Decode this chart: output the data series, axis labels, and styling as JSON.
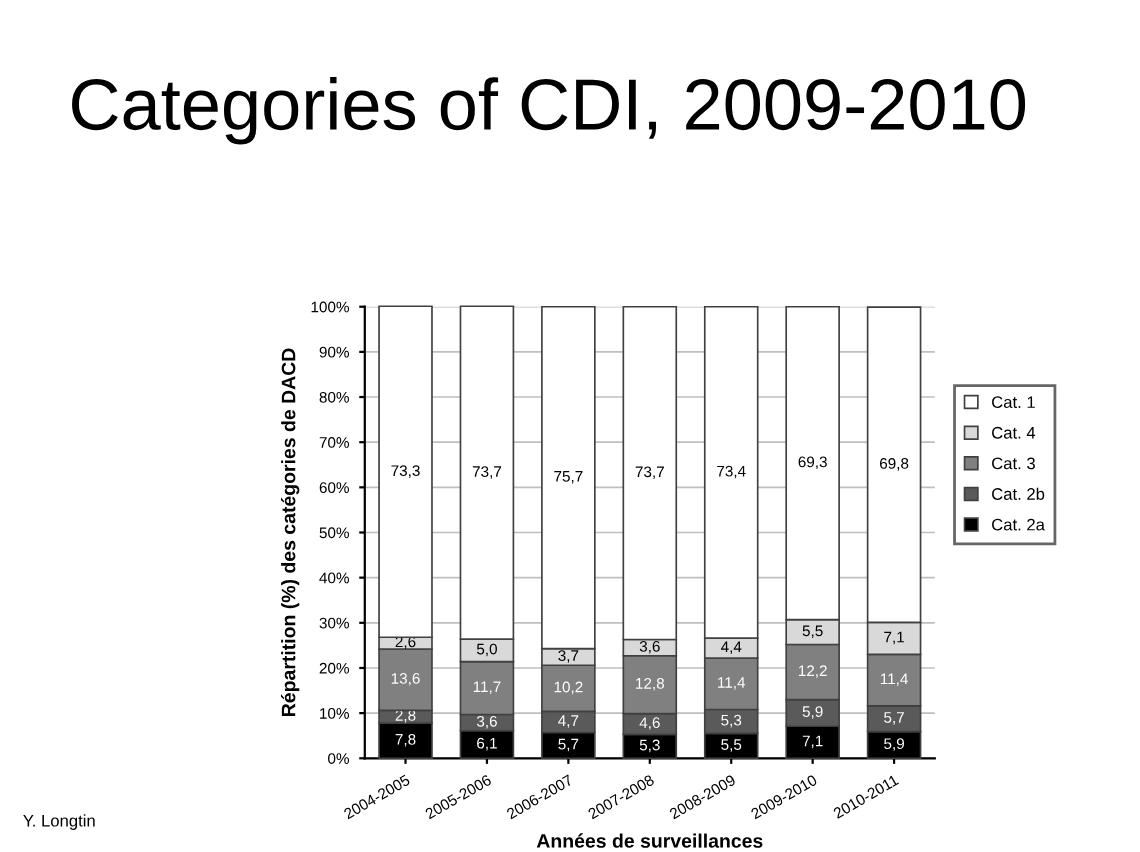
{
  "chart_data": {
    "type": "bar",
    "stacked": true,
    "title": "Categories of CDI, 2009-2010",
    "xlabel": "Années de surveillances",
    "ylabel": "Répartition (%) des catégories de DACD",
    "categories": [
      "2004-2005",
      "2005-2006",
      "2006-2007",
      "2007-2008",
      "2008-2009",
      "2009-2010",
      "2010-2011"
    ],
    "series": [
      {
        "name": "Cat. 2a",
        "color": "#000000",
        "values": [
          7.8,
          6.1,
          5.7,
          5.3,
          5.5,
          7.1,
          5.9
        ]
      },
      {
        "name": "Cat. 2b",
        "color": "#5a5a5a",
        "values": [
          2.8,
          3.6,
          4.7,
          4.6,
          5.3,
          5.9,
          5.7
        ]
      },
      {
        "name": "Cat. 3",
        "color": "#808080",
        "values": [
          13.6,
          11.7,
          10.2,
          12.8,
          11.4,
          12.2,
          11.4
        ]
      },
      {
        "name": "Cat. 4",
        "color": "#d9d9d9",
        "values": [
          2.6,
          5.0,
          3.7,
          3.6,
          4.4,
          5.5,
          7.1
        ]
      },
      {
        "name": "Cat. 1",
        "color": "#ffffff",
        "values": [
          73.3,
          73.7,
          75.7,
          73.7,
          73.4,
          69.3,
          69.8
        ]
      }
    ],
    "value_labels": [
      [
        "7,8",
        "6,1",
        "5,7",
        "5,3",
        "5,5",
        "7,1",
        "5,9"
      ],
      [
        "2,8",
        "3,6",
        "4,7",
        "4,6",
        "5,3",
        "5,9",
        "5,7"
      ],
      [
        "13,6",
        "11,7",
        "10,2",
        "12,8",
        "11,4",
        "12,2",
        "11,4"
      ],
      [
        "2,6",
        "5,0",
        "3,7",
        "3,6",
        "4,4",
        "5,5",
        "7,1"
      ],
      [
        "73,3",
        "73,7",
        "75,7",
        "73,7",
        "73,4",
        "69,3",
        "69,8"
      ]
    ],
    "ylim": [
      0,
      100
    ],
    "yticks": [
      {
        "value": 0,
        "label": "0%"
      },
      {
        "value": 10,
        "label": "10%"
      },
      {
        "value": 20,
        "label": "20%"
      },
      {
        "value": 30,
        "label": "30%"
      },
      {
        "value": 40,
        "label": "40%"
      },
      {
        "value": 50,
        "label": "50%"
      },
      {
        "value": 60,
        "label": "60%"
      },
      {
        "value": 70,
        "label": "70%"
      },
      {
        "value": 80,
        "label": "80%"
      },
      {
        "value": 90,
        "label": "90%"
      },
      {
        "value": 100,
        "label": "100%"
      }
    ],
    "grid": "y",
    "legend": "right",
    "annotations": [
      "Y. Longtin"
    ]
  }
}
